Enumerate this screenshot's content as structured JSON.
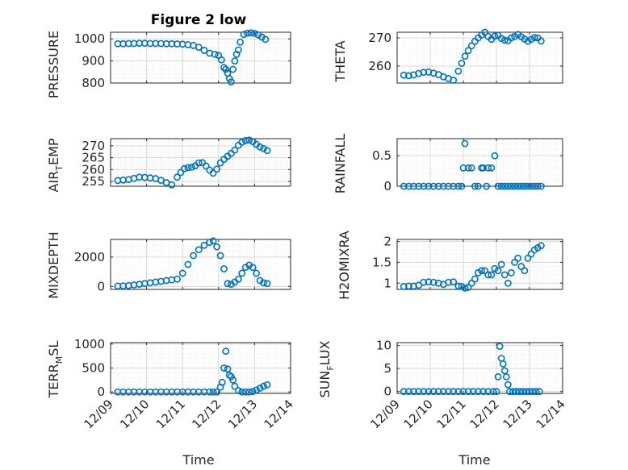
{
  "figure_title": "Figure 2 low",
  "xlabel": "Time",
  "x_tick_labels": [
    "12/09",
    "12/10",
    "12/11",
    "12/12",
    "12/13",
    "12/14"
  ],
  "colors": {
    "marker": "#0072BD",
    "grid": "#d9d9d9",
    "axis": "#262626"
  },
  "chart_data": [
    {
      "type": "scatter",
      "ylabel": "PRESSURE",
      "ylim": [
        800,
        1030
      ],
      "yticks": [
        800,
        900,
        1000
      ],
      "ytick_labels": [
        "800",
        "900",
        "1000"
      ],
      "xlim": [
        0,
        5
      ],
      "grid": true,
      "x": [
        0.2,
        0.35,
        0.5,
        0.65,
        0.8,
        0.95,
        1.1,
        1.25,
        1.4,
        1.55,
        1.7,
        1.85,
        2.0,
        2.15,
        2.3,
        2.45,
        2.6,
        2.75,
        2.9,
        3.0,
        3.08,
        3.15,
        3.2,
        3.25,
        3.3,
        3.35,
        3.4,
        3.45,
        3.5,
        3.55,
        3.6,
        3.7,
        3.8,
        3.9,
        4.0,
        4.1,
        4.2,
        4.3
      ],
      "y": [
        978,
        978,
        979,
        979,
        980,
        980,
        979,
        979,
        979,
        978,
        978,
        977,
        976,
        974,
        970,
        962,
        948,
        935,
        930,
        925,
        905,
        870,
        862,
        845,
        820,
        805,
        862,
        900,
        930,
        950,
        985,
        1020,
        1026,
        1027,
        1025,
        1018,
        1008,
        998
      ]
    },
    {
      "type": "scatter",
      "ylabel": "THETA",
      "ylim": [
        254,
        272
      ],
      "yticks": [
        260,
        270
      ],
      "ytick_labels": [
        "260",
        "270"
      ],
      "xlim": [
        0,
        5
      ],
      "grid": true,
      "x": [
        0.2,
        0.35,
        0.5,
        0.65,
        0.8,
        0.95,
        1.1,
        1.25,
        1.4,
        1.55,
        1.7,
        1.85,
        1.95,
        2.05,
        2.15,
        2.25,
        2.35,
        2.45,
        2.55,
        2.65,
        2.75,
        2.85,
        2.95,
        3.05,
        3.15,
        3.25,
        3.35,
        3.45,
        3.55,
        3.65,
        3.75,
        3.85,
        3.95,
        4.05,
        4.15,
        4.25,
        4.35
      ],
      "y": [
        256.8,
        256.6,
        256.9,
        257.4,
        257.8,
        257.9,
        257.5,
        257.0,
        256.2,
        255.6,
        255.0,
        258.2,
        261.0,
        263.5,
        265.5,
        267.2,
        268.8,
        270.0,
        271.0,
        272.0,
        270.5,
        269.5,
        270.6,
        270.9,
        269.8,
        269.2,
        269.0,
        270.0,
        270.5,
        271.2,
        270.4,
        269.6,
        268.8,
        269.5,
        270.1,
        270.0,
        268.9
      ]
    },
    {
      "type": "scatter",
      "ylabel": "AIR_TEMP",
      "ylim": [
        253,
        273
      ],
      "yticks": [
        255,
        260,
        265,
        270
      ],
      "ytick_labels": [
        "255",
        "260",
        "265",
        "270"
      ],
      "xlim": [
        0,
        5
      ],
      "grid": true,
      "x": [
        0.2,
        0.35,
        0.5,
        0.65,
        0.8,
        0.95,
        1.1,
        1.25,
        1.4,
        1.55,
        1.7,
        1.85,
        1.95,
        2.05,
        2.15,
        2.25,
        2.35,
        2.45,
        2.55,
        2.65,
        2.75,
        2.85,
        2.95,
        3.05,
        3.15,
        3.25,
        3.35,
        3.45,
        3.55,
        3.65,
        3.75,
        3.85,
        3.95,
        4.05,
        4.15,
        4.25,
        4.35
      ],
      "y": [
        255.4,
        255.6,
        255.8,
        256.3,
        256.8,
        256.7,
        256.5,
        256.2,
        255.5,
        254.5,
        253.6,
        256.8,
        258.8,
        260.4,
        260.8,
        261.0,
        261.6,
        262.8,
        262.9,
        261.5,
        259.8,
        258.5,
        260.2,
        262.8,
        264.3,
        265.6,
        266.8,
        268.2,
        270.2,
        271.5,
        272.2,
        272.4,
        271.8,
        270.6,
        269.5,
        268.8,
        268.0
      ]
    },
    {
      "type": "scatter",
      "ylabel": "RAINFALL",
      "ylim": [
        0,
        0.78
      ],
      "yticks": [
        0,
        0.5
      ],
      "ytick_labels": [
        "0",
        "0.5"
      ],
      "xlim": [
        0,
        5
      ],
      "grid": true,
      "x": [
        0.2,
        0.35,
        0.5,
        0.65,
        0.8,
        0.95,
        1.1,
        1.25,
        1.4,
        1.55,
        1.7,
        1.85,
        1.95,
        2.0,
        2.05,
        2.15,
        2.25,
        2.35,
        2.45,
        2.55,
        2.6,
        2.7,
        2.75,
        2.85,
        2.95,
        3.05,
        3.15,
        3.25,
        3.35,
        3.45,
        3.55,
        3.65,
        3.75,
        3.85,
        3.95,
        4.05,
        4.15,
        4.25,
        4.35
      ],
      "y": [
        0,
        0,
        0,
        0,
        0,
        0,
        0,
        0,
        0,
        0,
        0,
        0,
        0,
        0.3,
        0.7,
        0.3,
        0.3,
        0,
        0,
        0.3,
        0.3,
        0,
        0.3,
        0.3,
        0.5,
        0,
        0,
        0,
        0,
        0,
        0,
        0,
        0,
        0,
        0,
        0,
        0,
        0,
        0
      ]
    },
    {
      "type": "scatter",
      "ylabel": "MIXDEPTH",
      "ylim": [
        -200,
        3200
      ],
      "yticks": [
        0,
        2000
      ],
      "ytick_labels": [
        "0",
        "2000"
      ],
      "xlim": [
        0,
        5
      ],
      "grid": true,
      "x": [
        0.2,
        0.35,
        0.5,
        0.65,
        0.8,
        0.95,
        1.1,
        1.25,
        1.4,
        1.55,
        1.7,
        1.85,
        2.0,
        2.15,
        2.3,
        2.45,
        2.6,
        2.75,
        2.85,
        2.95,
        3.05,
        3.15,
        3.25,
        3.35,
        3.45,
        3.55,
        3.65,
        3.75,
        3.85,
        3.95,
        4.05,
        4.15,
        4.25,
        4.35
      ],
      "y": [
        30,
        40,
        60,
        100,
        150,
        200,
        250,
        300,
        350,
        400,
        450,
        500,
        900,
        1500,
        2100,
        2500,
        2800,
        3000,
        3100,
        2700,
        2100,
        1200,
        200,
        150,
        300,
        500,
        900,
        1300,
        1450,
        1300,
        900,
        400,
        250,
        200
      ]
    },
    {
      "type": "scatter",
      "ylabel": "H2OMIXRA",
      "ylim": [
        0.85,
        2.05
      ],
      "yticks": [
        1,
        1.5,
        2
      ],
      "ytick_labels": [
        "1",
        "1.5",
        "2"
      ],
      "xlim": [
        0,
        5
      ],
      "grid": true,
      "x": [
        0.2,
        0.35,
        0.5,
        0.65,
        0.8,
        0.95,
        1.1,
        1.25,
        1.4,
        1.55,
        1.7,
        1.85,
        1.95,
        2.05,
        2.15,
        2.25,
        2.35,
        2.45,
        2.55,
        2.65,
        2.75,
        2.85,
        2.95,
        3.05,
        3.15,
        3.25,
        3.35,
        3.45,
        3.55,
        3.65,
        3.75,
        3.85,
        3.95,
        4.05,
        4.15,
        4.25,
        4.35
      ],
      "y": [
        0.92,
        0.93,
        0.93,
        0.95,
        1.02,
        1.03,
        1.02,
        1.0,
        0.97,
        1.02,
        1.03,
        0.93,
        0.92,
        0.88,
        0.9,
        1.0,
        1.1,
        1.25,
        1.3,
        1.3,
        1.2,
        1.2,
        1.35,
        1.3,
        1.45,
        1.2,
        1.0,
        1.25,
        1.5,
        1.6,
        1.4,
        1.3,
        1.6,
        1.7,
        1.8,
        1.85,
        1.9
      ]
    },
    {
      "type": "scatter",
      "ylabel": "TERR_MSL",
      "ylim": [
        -30,
        1030
      ],
      "yticks": [
        0,
        500,
        1000
      ],
      "ytick_labels": [
        "0",
        "500",
        "1000"
      ],
      "xlim": [
        0,
        5
      ],
      "grid": true,
      "x": [
        0.2,
        0.35,
        0.5,
        0.65,
        0.8,
        0.95,
        1.1,
        1.25,
        1.4,
        1.55,
        1.7,
        1.85,
        2.0,
        2.15,
        2.3,
        2.45,
        2.6,
        2.75,
        2.85,
        2.95,
        3.05,
        3.1,
        3.15,
        3.2,
        3.25,
        3.3,
        3.35,
        3.4,
        3.45,
        3.55,
        3.65,
        3.75,
        3.85,
        3.95,
        4.05,
        4.15,
        4.25,
        4.35
      ],
      "y": [
        0,
        0,
        0,
        0,
        0,
        0,
        0,
        0,
        0,
        0,
        0,
        0,
        0,
        0,
        0,
        0,
        0,
        0,
        0,
        0,
        100,
        200,
        500,
        850,
        480,
        350,
        320,
        250,
        120,
        30,
        0,
        0,
        0,
        10,
        40,
        80,
        120,
        150
      ]
    },
    {
      "type": "scatter",
      "ylabel": "SUN_FLUX",
      "ylim": [
        -0.4,
        10.6
      ],
      "yticks": [
        0,
        5,
        10
      ],
      "ytick_labels": [
        "0",
        "5",
        "10"
      ],
      "xlim": [
        0,
        5
      ],
      "grid": true,
      "x": [
        0.2,
        0.35,
        0.5,
        0.65,
        0.8,
        0.95,
        1.1,
        1.25,
        1.4,
        1.55,
        1.7,
        1.85,
        2.0,
        2.15,
        2.3,
        2.45,
        2.6,
        2.75,
        2.9,
        3.0,
        3.05,
        3.1,
        3.15,
        3.2,
        3.25,
        3.3,
        3.35,
        3.4,
        3.5,
        3.6,
        3.7,
        3.8,
        3.9,
        4.0,
        4.1,
        4.2,
        4.3
      ],
      "y": [
        0,
        0,
        0,
        0,
        0,
        0,
        0,
        0,
        0,
        0,
        0,
        0,
        0,
        0,
        0,
        0,
        0,
        0,
        0,
        0,
        3.2,
        9.8,
        7.2,
        6.0,
        4.5,
        3.2,
        1.5,
        0,
        0,
        0,
        0,
        0,
        0,
        0,
        0,
        0,
        0
      ]
    }
  ]
}
